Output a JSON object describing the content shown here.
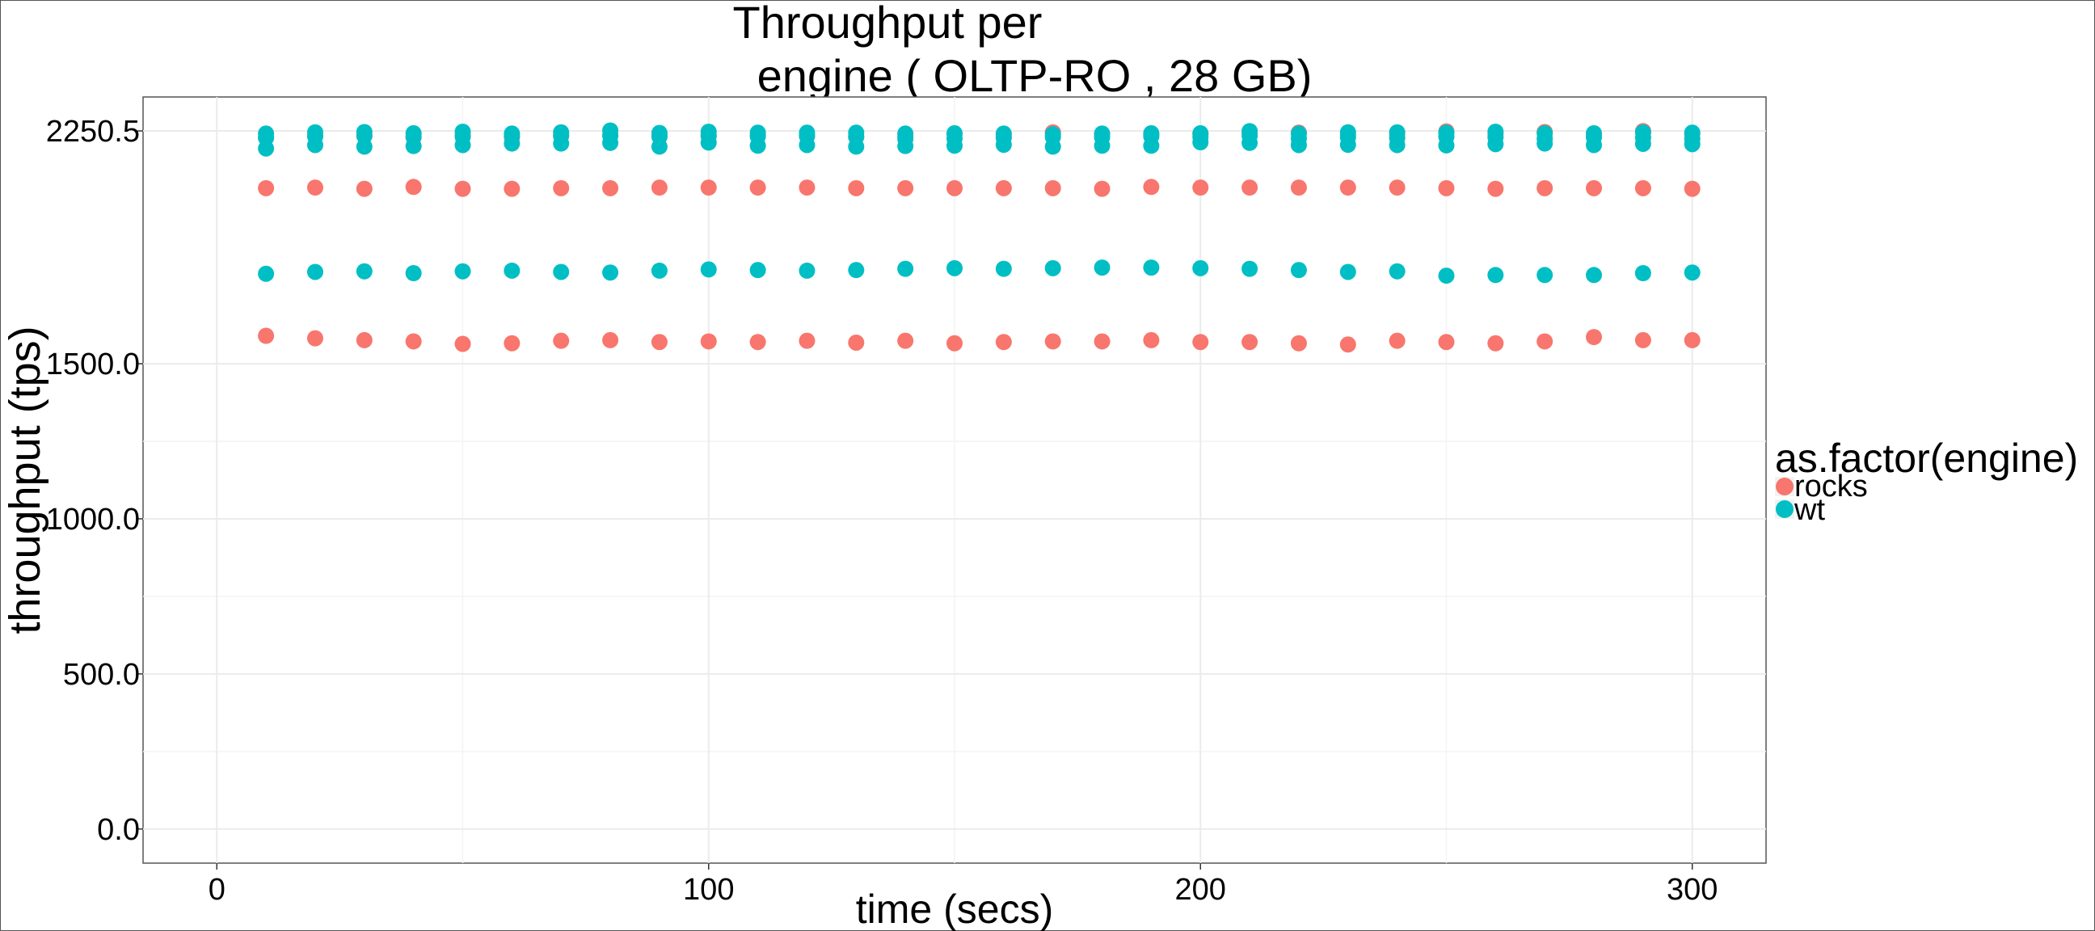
{
  "chart_data": {
    "type": "scatter",
    "title_line1": "Throughput per",
    "title_line2": "engine ( OLTP-RO ,  28 GB)",
    "xlabel": "time (secs)",
    "ylabel": "throughput (tps)",
    "xlim": [
      -15,
      315
    ],
    "ylim": [
      -110,
      2360
    ],
    "xticks": [
      0,
      100,
      200,
      300
    ],
    "xtick_labels": [
      "0",
      "100",
      "200",
      "300"
    ],
    "yticks": [
      0,
      500,
      1000,
      1500,
      2250.5
    ],
    "ytick_labels": [
      "0.0",
      "500.0",
      "1000.0",
      "1500.0",
      "2250.5"
    ],
    "y_minor_gridlines": [
      250,
      750,
      1250
    ],
    "x_minor_gridlines": [
      50,
      150,
      250
    ],
    "grid": true,
    "legend": {
      "title": "as.factor(engine)",
      "position": "right",
      "entries": [
        {
          "name": "rocks",
          "color": "#F8766D"
        },
        {
          "name": "wt",
          "color": "#00BFC4"
        }
      ]
    },
    "x": [
      10,
      20,
      30,
      40,
      50,
      60,
      70,
      80,
      90,
      100,
      110,
      120,
      130,
      140,
      150,
      160,
      170,
      180,
      190,
      200,
      210,
      220,
      230,
      240,
      250,
      260,
      270,
      280,
      290,
      300
    ],
    "series": [
      {
        "name": "rocks",
        "color": "#F8766D",
        "groups": [
          [
            2230,
            2235,
            2234,
            2230,
            2236,
            2230,
            2234,
            2237,
            2232,
            2233,
            2236,
            2234,
            2231,
            2233,
            2240,
            2235,
            2246,
            2240,
            2238,
            2241,
            2243,
            2245,
            2238,
            2240,
            2249,
            2240,
            2247,
            2238,
            2250,
            2240
          ],
          [
            2066,
            2068,
            2064,
            2070,
            2064,
            2064,
            2066,
            2066,
            2068,
            2068,
            2068,
            2068,
            2066,
            2066,
            2066,
            2066,
            2066,
            2064,
            2070,
            2068,
            2068,
            2068,
            2068,
            2068,
            2066,
            2064,
            2066,
            2066,
            2066,
            2064
          ],
          [
            1590,
            1582,
            1576,
            1572,
            1564,
            1566,
            1574,
            1576,
            1570,
            1572,
            1570,
            1574,
            1568,
            1574,
            1566,
            1570,
            1572,
            1572,
            1576,
            1570,
            1570,
            1566,
            1562,
            1574,
            1570,
            1566,
            1572,
            1586,
            1576,
            1576
          ]
        ]
      },
      {
        "name": "wt",
        "color": "#00BFC4",
        "groups": [
          [
            2242,
            2246,
            2247,
            2243,
            2248,
            2242,
            2246,
            2252,
            2244,
            2248,
            2245,
            2245,
            2245,
            2242,
            2243,
            2242,
            2240,
            2242,
            2243,
            2243,
            2250,
            2242,
            2246,
            2246,
            2245,
            2248,
            2243,
            2243,
            2246,
            2245
          ],
          [
            2228,
            2233,
            2235,
            2232,
            2232,
            2234,
            2236,
            2235,
            2233,
            2236,
            2233,
            2234,
            2232,
            2225,
            2226,
            2228,
            2231,
            2230,
            2233,
            2231,
            2235,
            2226,
            2230,
            2228,
            2232,
            2230,
            2226,
            2230,
            2229,
            2225
          ],
          [
            2194,
            2205,
            2200,
            2202,
            2205,
            2210,
            2210,
            2212,
            2200,
            2213,
            2203,
            2205,
            2200,
            2202,
            2203,
            2206,
            2200,
            2203,
            2203,
            2214,
            2212,
            2205,
            2206,
            2205,
            2204,
            2208,
            2210,
            2205,
            2209,
            2208
          ],
          [
            1790,
            1796,
            1798,
            1792,
            1798,
            1800,
            1796,
            1794,
            1800,
            1804,
            1802,
            1800,
            1802,
            1806,
            1808,
            1806,
            1808,
            1810,
            1810,
            1808,
            1806,
            1802,
            1796,
            1798,
            1784,
            1786,
            1786,
            1786,
            1792,
            1794
          ]
        ]
      }
    ]
  }
}
